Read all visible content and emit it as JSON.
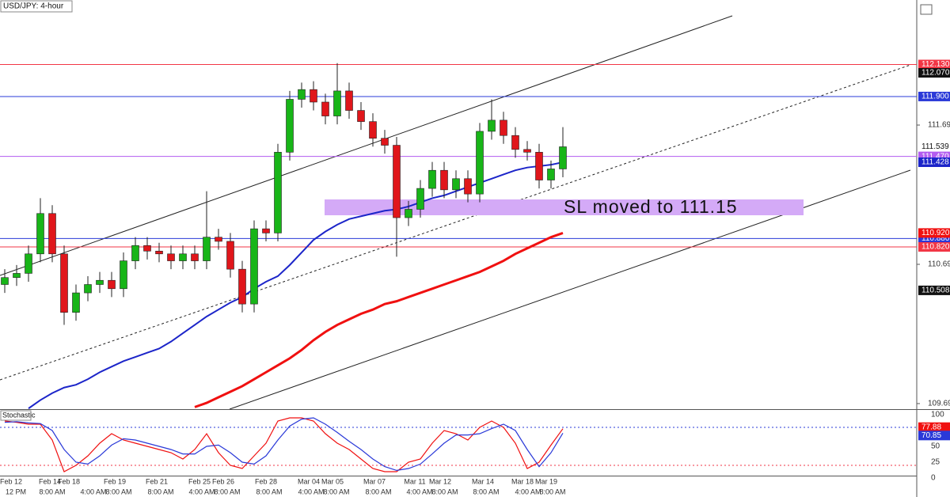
{
  "chart_data": {
    "type": "candlestick",
    "title": "USD/JPY: 4-hour",
    "up_color": "#18b518",
    "down_color": "#e0161b",
    "open": [
      110.55,
      110.6,
      110.63,
      110.77,
      111.06,
      110.77,
      110.35,
      110.49,
      110.55,
      110.58,
      110.52,
      110.72,
      110.83,
      110.79,
      110.77,
      110.72,
      110.77,
      110.72,
      110.89,
      110.86,
      110.66,
      110.41,
      110.95,
      110.92,
      111.5,
      111.88,
      111.95,
      111.86,
      111.76,
      111.94,
      111.8,
      111.72,
      111.6,
      111.55,
      111.03,
      111.09,
      111.24,
      111.37,
      111.23,
      111.31,
      111.2,
      111.65,
      111.73,
      111.62,
      111.52,
      111.5,
      111.3,
      111.38
    ],
    "high": [
      110.66,
      110.69,
      110.83,
      111.17,
      111.12,
      110.83,
      110.55,
      110.61,
      110.64,
      110.64,
      110.78,
      110.89,
      110.89,
      110.85,
      110.83,
      110.83,
      110.83,
      111.22,
      110.95,
      110.92,
      110.72,
      111.01,
      111.01,
      111.56,
      111.94,
      112.0,
      112.01,
      111.92,
      112.14,
      112.0,
      111.86,
      111.78,
      111.66,
      111.61,
      111.15,
      111.3,
      111.43,
      111.43,
      111.37,
      111.37,
      111.71,
      111.88,
      111.79,
      111.68,
      111.58,
      111.56,
      111.44,
      111.68
    ],
    "low": [
      110.49,
      110.54,
      110.57,
      110.71,
      110.71,
      110.26,
      110.29,
      110.43,
      110.49,
      110.46,
      110.46,
      110.66,
      110.73,
      110.71,
      110.66,
      110.66,
      110.66,
      110.66,
      110.8,
      110.6,
      110.35,
      110.35,
      110.86,
      110.86,
      111.44,
      111.82,
      111.8,
      111.7,
      111.7,
      111.74,
      111.66,
      111.54,
      111.49,
      110.75,
      110.97,
      111.03,
      111.18,
      111.17,
      111.17,
      111.14,
      111.14,
      111.59,
      111.56,
      111.46,
      111.44,
      111.24,
      111.24,
      111.32
    ],
    "close": [
      110.6,
      110.63,
      110.77,
      111.06,
      110.77,
      110.35,
      110.49,
      110.55,
      110.58,
      110.52,
      110.72,
      110.83,
      110.79,
      110.77,
      110.72,
      110.77,
      110.72,
      110.89,
      110.86,
      110.66,
      110.41,
      110.95,
      110.92,
      111.5,
      111.88,
      111.95,
      111.86,
      111.76,
      111.94,
      111.8,
      111.72,
      111.6,
      111.55,
      111.03,
      111.09,
      111.24,
      111.37,
      111.23,
      111.31,
      111.2,
      111.65,
      111.73,
      111.62,
      111.52,
      111.5,
      111.3,
      111.38,
      111.539
    ],
    "moving_averages": [
      {
        "color": "#1c25c9",
        "values": [
          null,
          null,
          109.66,
          109.72,
          109.77,
          109.81,
          109.83,
          109.87,
          109.92,
          109.96,
          110.0,
          110.03,
          110.06,
          110.09,
          110.14,
          110.2,
          110.26,
          110.32,
          110.37,
          110.42,
          110.46,
          110.52,
          110.57,
          110.61,
          110.69,
          110.78,
          110.87,
          110.93,
          110.98,
          111.02,
          111.04,
          111.06,
          111.08,
          111.09,
          111.11,
          111.14,
          111.17,
          111.19,
          111.22,
          111.25,
          111.28,
          111.31,
          111.34,
          111.37,
          111.39,
          111.4,
          111.41,
          111.428
        ]
      },
      {
        "color": "#f01010",
        "last_label": "110.920",
        "values": [
          null,
          null,
          null,
          null,
          null,
          null,
          null,
          null,
          null,
          null,
          null,
          null,
          null,
          null,
          null,
          null,
          109.67,
          109.7,
          109.74,
          109.78,
          109.82,
          109.87,
          109.92,
          109.97,
          110.02,
          110.08,
          110.15,
          110.21,
          110.26,
          110.3,
          110.34,
          110.37,
          110.41,
          110.43,
          110.46,
          110.49,
          110.52,
          110.55,
          110.58,
          110.61,
          110.64,
          110.68,
          110.72,
          110.77,
          110.81,
          110.85,
          110.89,
          110.92
        ]
      }
    ],
    "levels": [
      {
        "value": 112.13,
        "label": "112.130",
        "color": "#f23645"
      },
      {
        "value": 111.9,
        "label": "111.900",
        "color": "#2a39d8"
      },
      {
        "value": 111.47,
        "label": "111.470",
        "color": "#b35cf0"
      },
      {
        "value": 110.88,
        "label": "110.880",
        "color": "#2a39d8"
      },
      {
        "value": 110.82,
        "label": "110.820",
        "color": "#f23645"
      }
    ],
    "price_tags": [
      {
        "value": 112.07,
        "label": "112.070"
      },
      {
        "value": 110.508,
        "label": "110.508"
      }
    ],
    "ylim": [
      109.655,
      112.593
    ],
    "yticks": [
      109.695,
      110.695,
      111.695
    ],
    "annotation": {
      "text": "SL moved to 111.15",
      "color": "#d4aaf7"
    },
    "dates": [
      "Feb 12",
      "Feb 14",
      "Feb 18",
      "Feb 19",
      "Feb 21",
      "Feb 25",
      "Feb 26",
      "Feb 28",
      "Mar 04",
      "Mar 05",
      "Mar 07",
      "Mar 11",
      "Mar 12",
      "Mar 14",
      "Mar 18",
      "Mar 19"
    ],
    "times": [
      "12 PM",
      "8:00 AM",
      "4:00 AM",
      "8:00 AM",
      "8:00 AM",
      "4:00 AM",
      "8:00 AM",
      "8:00 AM",
      "4:00 AM",
      "8:00 AM",
      "8:00 AM",
      "4:00 AM",
      "8:00 AM",
      "8:00 AM",
      "4:00 AM",
      "8:00 AM"
    ],
    "stochastic": {
      "label": "Stochastic",
      "ylim": [
        0,
        107.5
      ],
      "yticks": [
        0,
        25,
        50,
        100
      ],
      "levels": [
        80,
        20
      ],
      "series": [
        {
          "color": "#f01010",
          "values": [
            90,
            88,
            85,
            85,
            60,
            10,
            20,
            35,
            55,
            70,
            60,
            55,
            50,
            45,
            40,
            30,
            45,
            70,
            40,
            20,
            15,
            35,
            55,
            90,
            95,
            95,
            90,
            70,
            55,
            45,
            30,
            15,
            10,
            10,
            25,
            30,
            55,
            75,
            70,
            60,
            80,
            90,
            80,
            55,
            15,
            25,
            52,
            77.88
          ]
        },
        {
          "color": "#2a39d8",
          "values": [
            88,
            89,
            87,
            86,
            75,
            45,
            25,
            22,
            35,
            52,
            62,
            60,
            55,
            50,
            45,
            38,
            38,
            50,
            52,
            40,
            25,
            22,
            35,
            60,
            82,
            93,
            95,
            85,
            72,
            58,
            45,
            30,
            18,
            12,
            15,
            22,
            38,
            55,
            68,
            68,
            70,
            78,
            85,
            75,
            45,
            18,
            40,
            70.85
          ]
        }
      ]
    }
  }
}
